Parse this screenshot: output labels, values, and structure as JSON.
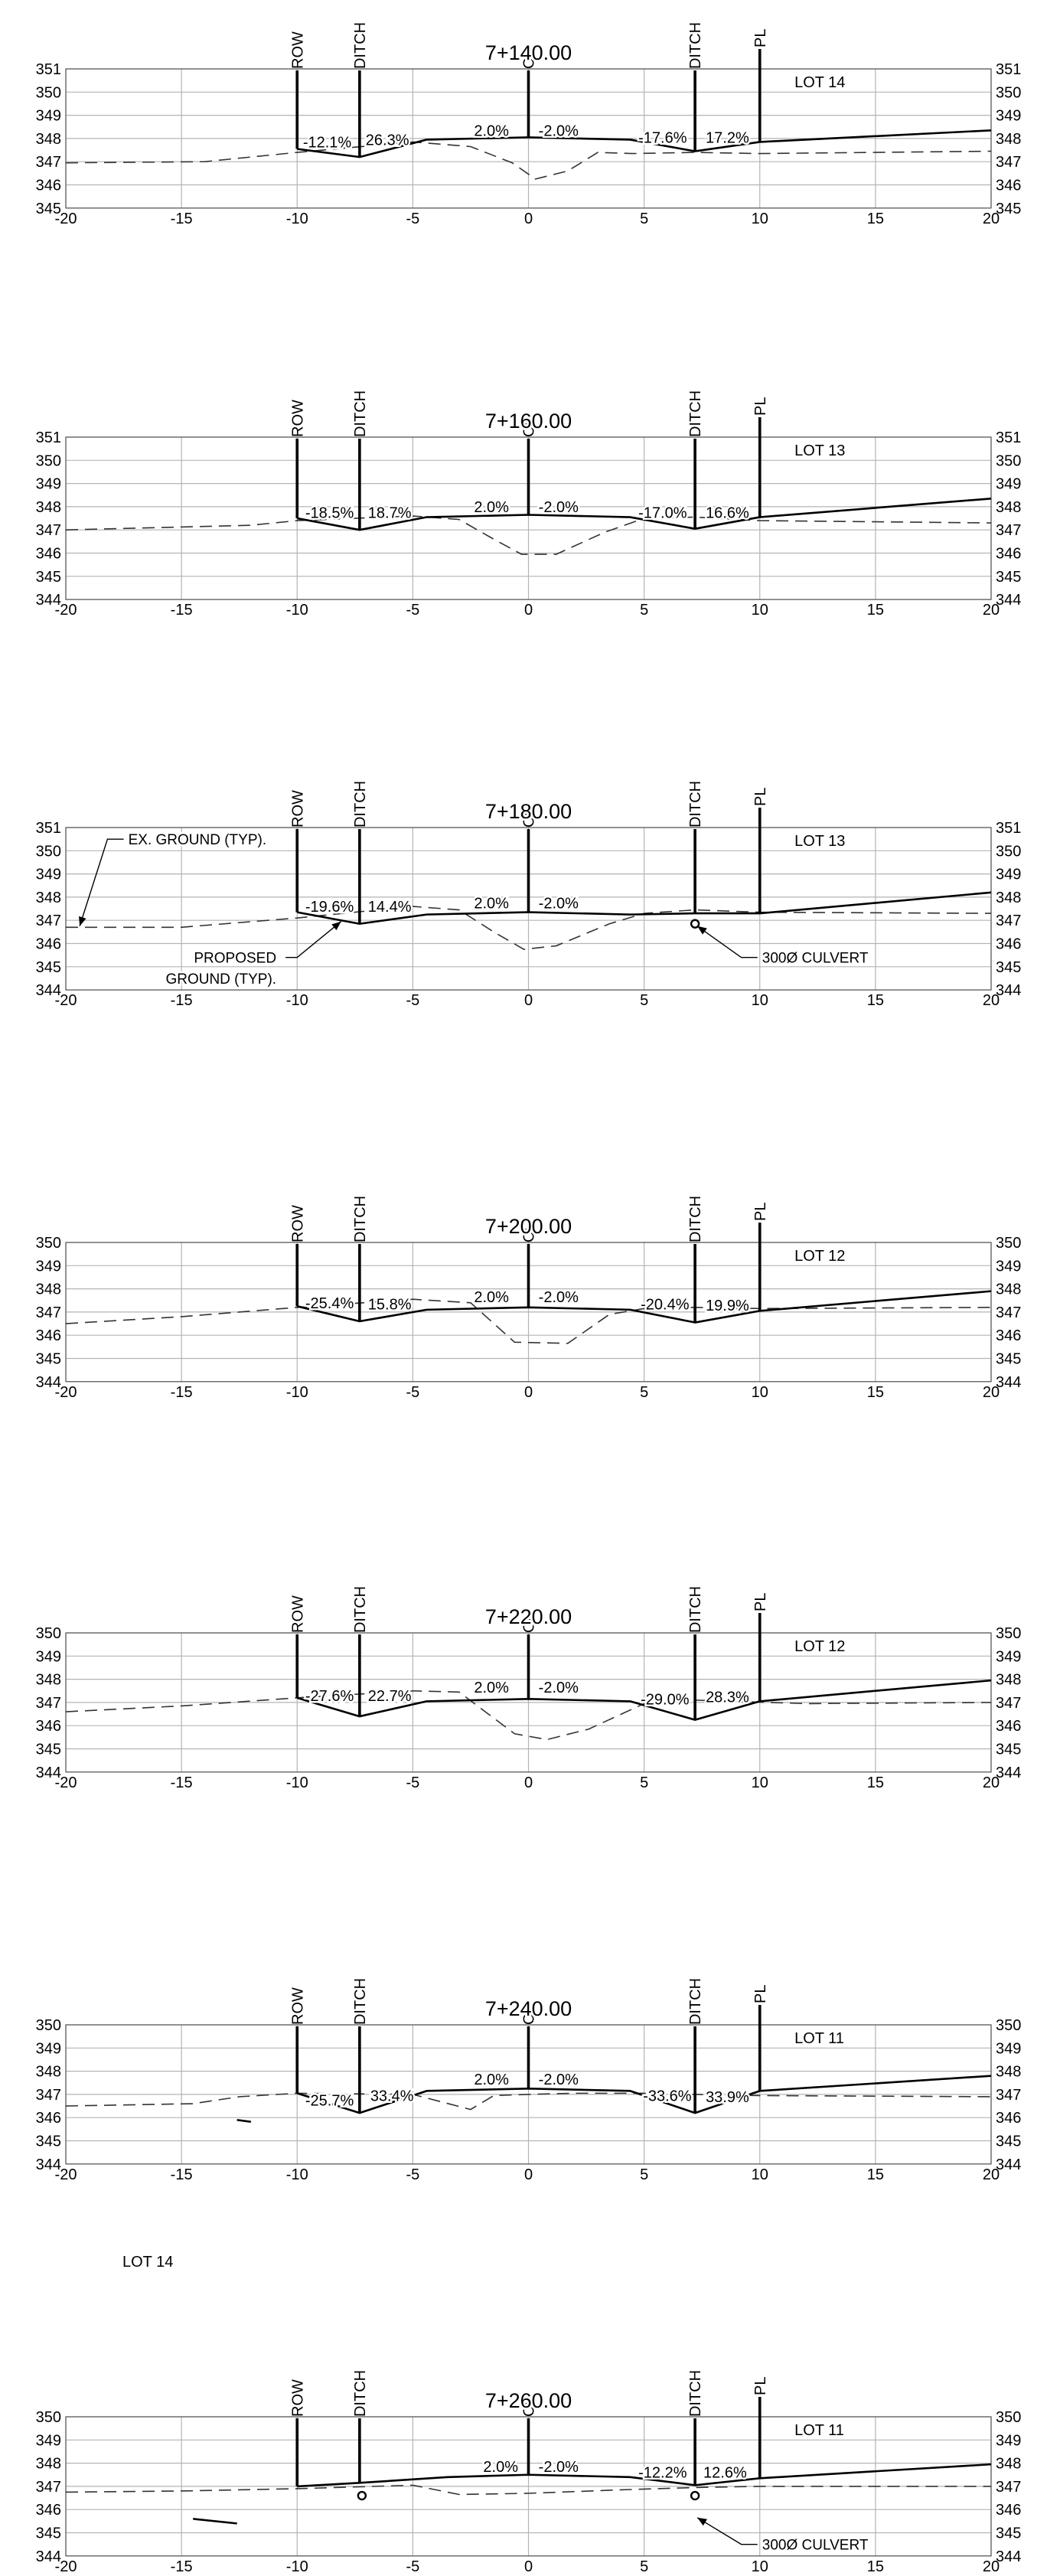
{
  "drawing": {
    "x_ticks": [
      "-20",
      "-15",
      "-10",
      "-5",
      "0",
      "5",
      "10",
      "15",
      "20"
    ],
    "marker_labels": [
      "ROW",
      "DITCH",
      "CL",
      "DITCH",
      "PL"
    ],
    "stray_note": "LOT 14"
  },
  "chart_data": [
    {
      "type": "line",
      "title": "7+140.00",
      "lot_label": "LOT 14",
      "xlim": [
        -20,
        20
      ],
      "ylim": [
        345,
        351
      ],
      "y_ticks": [
        "345",
        "346",
        "347",
        "348",
        "349",
        "350",
        "351"
      ],
      "markers_x": [
        -10,
        -7.3,
        0,
        7.2,
        10
      ],
      "proposed": [
        [
          -10,
          347.55
        ],
        [
          -7.3,
          347.2
        ],
        [
          -4.4,
          347.95
        ],
        [
          0,
          348.05
        ],
        [
          4.4,
          347.95
        ],
        [
          7.2,
          347.45
        ],
        [
          10,
          347.85
        ],
        [
          20,
          348.35
        ]
      ],
      "existing": [
        [
          -20,
          346.95
        ],
        [
          -14,
          347.0
        ],
        [
          -10,
          347.4
        ],
        [
          -5,
          347.85
        ],
        [
          -2.5,
          347.65
        ],
        [
          -0.7,
          346.95
        ],
        [
          0.3,
          346.25
        ],
        [
          1.7,
          346.6
        ],
        [
          3.0,
          347.4
        ],
        [
          4.5,
          347.35
        ],
        [
          7.2,
          347.4
        ],
        [
          10,
          347.35
        ],
        [
          20,
          347.45
        ]
      ],
      "slopes": [
        {
          "text": "-12.1%",
          "x": -8.7,
          "y": 347.85
        },
        {
          "text": "26.3%",
          "x": -6.1,
          "y": 347.95
        },
        {
          "text": "2.0%",
          "x": -1.6,
          "y": 348.35
        },
        {
          "text": "-2.0%",
          "x": 1.3,
          "y": 348.35
        },
        {
          "text": "-17.6%",
          "x": 5.8,
          "y": 348.05
        },
        {
          "text": "17.2%",
          "x": 8.6,
          "y": 348.05
        }
      ],
      "culverts": [],
      "notes": []
    },
    {
      "type": "line",
      "title": "7+160.00",
      "lot_label": "LOT 13",
      "xlim": [
        -20,
        20
      ],
      "ylim": [
        344,
        351
      ],
      "y_ticks": [
        "344",
        "345",
        "346",
        "347",
        "348",
        "349",
        "350",
        "351"
      ],
      "markers_x": [
        -10,
        -7.3,
        0,
        7.2,
        10
      ],
      "proposed": [
        [
          -10,
          347.5
        ],
        [
          -7.3,
          347.0
        ],
        [
          -4.4,
          347.55
        ],
        [
          0,
          347.65
        ],
        [
          4.4,
          347.55
        ],
        [
          7.2,
          347.05
        ],
        [
          10,
          347.55
        ],
        [
          20,
          348.35
        ]
      ],
      "existing": [
        [
          -20,
          347.0
        ],
        [
          -12,
          347.2
        ],
        [
          -10,
          347.4
        ],
        [
          -5,
          347.6
        ],
        [
          -3,
          347.45
        ],
        [
          -1.5,
          346.6
        ],
        [
          -0.3,
          345.95
        ],
        [
          1.2,
          345.95
        ],
        [
          3.3,
          346.9
        ],
        [
          5.0,
          347.5
        ],
        [
          7.2,
          347.55
        ],
        [
          10,
          347.4
        ],
        [
          20,
          347.3
        ]
      ],
      "slopes": [
        {
          "text": "-18.5%",
          "x": -8.6,
          "y": 347.75
        },
        {
          "text": "18.7%",
          "x": -6.0,
          "y": 347.75
        },
        {
          "text": "2.0%",
          "x": -1.6,
          "y": 348.0
        },
        {
          "text": "-2.0%",
          "x": 1.3,
          "y": 348.0
        },
        {
          "text": "-17.0%",
          "x": 5.8,
          "y": 347.75
        },
        {
          "text": "16.6%",
          "x": 8.6,
          "y": 347.75
        }
      ],
      "culverts": [],
      "notes": []
    },
    {
      "type": "line",
      "title": "7+180.00",
      "lot_label": "LOT 13",
      "xlim": [
        -20,
        20
      ],
      "ylim": [
        344,
        351
      ],
      "y_ticks": [
        "344",
        "345",
        "346",
        "347",
        "348",
        "349",
        "350",
        "351"
      ],
      "markers_x": [
        -10,
        -7.3,
        0,
        7.2,
        10
      ],
      "proposed": [
        [
          -10,
          347.35
        ],
        [
          -7.3,
          346.85
        ],
        [
          -4.4,
          347.25
        ],
        [
          0,
          347.35
        ],
        [
          4.4,
          347.25
        ],
        [
          7.2,
          347.3
        ],
        [
          10,
          347.3
        ],
        [
          20,
          348.2
        ]
      ],
      "existing": [
        [
          -20,
          346.7
        ],
        [
          -15,
          346.7
        ],
        [
          -10,
          347.1
        ],
        [
          -5,
          347.6
        ],
        [
          -3,
          347.45
        ],
        [
          -1.5,
          346.5
        ],
        [
          -0.2,
          345.75
        ],
        [
          1.2,
          345.9
        ],
        [
          3.5,
          346.85
        ],
        [
          5.0,
          347.3
        ],
        [
          7.2,
          347.45
        ],
        [
          10,
          347.35
        ],
        [
          20,
          347.3
        ]
      ],
      "slopes": [
        {
          "text": "-19.6%",
          "x": -8.6,
          "y": 347.6
        },
        {
          "text": "14.4%",
          "x": -6.0,
          "y": 347.6
        },
        {
          "text": "2.0%",
          "x": -1.6,
          "y": 347.75
        },
        {
          "text": "-2.0%",
          "x": 1.3,
          "y": 347.75
        }
      ],
      "culverts": [
        {
          "x": 7.2,
          "y": 346.85
        }
      ],
      "notes": [
        {
          "text": "EX. GROUND (TYP).",
          "lines": null,
          "x": -17.3,
          "y": 350.5,
          "anchor": "start",
          "leader": [
            [
              -17.5,
              350.5
            ],
            [
              -18.2,
              350.5
            ],
            [
              -19.4,
              346.75
            ]
          ]
        },
        {
          "text": "PROPOSED",
          "x": -10.9,
          "y": 345.4,
          "anchor": "end",
          "leader": [
            [
              -10.5,
              345.4
            ],
            [
              -10.0,
              345.4
            ],
            [
              -8.1,
              346.95
            ]
          ]
        },
        {
          "text": "GROUND (TYP).",
          "x": -10.9,
          "y": 344.5,
          "anchor": "end",
          "leader": null
        },
        {
          "text": "300Ø CULVERT",
          "x": 10.1,
          "y": 345.4,
          "anchor": "start",
          "leader": [
            [
              9.9,
              345.4
            ],
            [
              9.2,
              345.4
            ],
            [
              7.3,
              346.75
            ]
          ]
        }
      ]
    },
    {
      "type": "line",
      "title": "7+200.00",
      "lot_label": "LOT 12",
      "xlim": [
        -20,
        20
      ],
      "ylim": [
        344,
        350
      ],
      "y_ticks": [
        "344",
        "345",
        "346",
        "347",
        "348",
        "349",
        "350"
      ],
      "markers_x": [
        -10,
        -7.3,
        0,
        7.2,
        10
      ],
      "proposed": [
        [
          -10,
          347.25
        ],
        [
          -7.3,
          346.6
        ],
        [
          -4.4,
          347.1
        ],
        [
          0,
          347.2
        ],
        [
          4.4,
          347.1
        ],
        [
          7.2,
          346.55
        ],
        [
          10,
          347.05
        ],
        [
          20,
          347.9
        ]
      ],
      "existing": [
        [
          -20,
          346.5
        ],
        [
          -15,
          346.8
        ],
        [
          -10,
          347.2
        ],
        [
          -5,
          347.55
        ],
        [
          -2.5,
          347.4
        ],
        [
          -0.6,
          345.7
        ],
        [
          1.7,
          345.65
        ],
        [
          3.5,
          346.9
        ],
        [
          5.0,
          347.15
        ],
        [
          7.2,
          347.2
        ],
        [
          10,
          347.15
        ],
        [
          20,
          347.2
        ]
      ],
      "slopes": [
        {
          "text": "-25.4%",
          "x": -8.6,
          "y": 347.4
        },
        {
          "text": "15.8%",
          "x": -6.0,
          "y": 347.35
        },
        {
          "text": "2.0%",
          "x": -1.6,
          "y": 347.65
        },
        {
          "text": "-2.0%",
          "x": 1.3,
          "y": 347.65
        },
        {
          "text": "-20.4%",
          "x": 5.9,
          "y": 347.35
        },
        {
          "text": "19.9%",
          "x": 8.6,
          "y": 347.3
        }
      ],
      "culverts": [],
      "notes": []
    },
    {
      "type": "line",
      "title": "7+220.00",
      "lot_label": "LOT 12",
      "xlim": [
        -20,
        20
      ],
      "ylim": [
        344,
        350
      ],
      "y_ticks": [
        "344",
        "345",
        "346",
        "347",
        "348",
        "349",
        "350"
      ],
      "markers_x": [
        -10,
        -7.3,
        0,
        7.2,
        10
      ],
      "proposed": [
        [
          -10,
          347.2
        ],
        [
          -7.3,
          346.4
        ],
        [
          -4.4,
          347.05
        ],
        [
          0,
          347.15
        ],
        [
          4.4,
          347.05
        ],
        [
          7.2,
          346.25
        ],
        [
          10,
          347.05
        ],
        [
          20,
          347.95
        ]
      ],
      "existing": [
        [
          -20,
          346.6
        ],
        [
          -15,
          346.85
        ],
        [
          -10,
          347.2
        ],
        [
          -5,
          347.5
        ],
        [
          -3,
          347.45
        ],
        [
          -0.6,
          345.65
        ],
        [
          0.8,
          345.4
        ],
        [
          2.6,
          345.85
        ],
        [
          5,
          346.95
        ],
        [
          7.2,
          347.1
        ],
        [
          12,
          346.95
        ],
        [
          20,
          347.0
        ]
      ],
      "slopes": [
        {
          "text": "-27.6%",
          "x": -8.6,
          "y": 347.3
        },
        {
          "text": "22.7%",
          "x": -6.0,
          "y": 347.3
        },
        {
          "text": "2.0%",
          "x": -1.6,
          "y": 347.65
        },
        {
          "text": "-2.0%",
          "x": 1.3,
          "y": 347.65
        },
        {
          "text": "-29.0%",
          "x": 5.9,
          "y": 347.15
        },
        {
          "text": "28.3%",
          "x": 8.6,
          "y": 347.25
        }
      ],
      "culverts": [],
      "notes": []
    },
    {
      "type": "line",
      "title": "7+240.00",
      "lot_label": "LOT 11",
      "xlim": [
        -20,
        20
      ],
      "ylim": [
        344,
        350
      ],
      "y_ticks": [
        "344",
        "345",
        "346",
        "347",
        "348",
        "349",
        "350"
      ],
      "markers_x": [
        -10,
        -7.3,
        0,
        7.2,
        10
      ],
      "proposed": [
        [
          -10,
          347.05
        ],
        [
          -7.3,
          346.2
        ],
        [
          -4.4,
          347.15
        ],
        [
          0,
          347.25
        ],
        [
          4.4,
          347.15
        ],
        [
          7.2,
          346.2
        ],
        [
          10,
          347.15
        ],
        [
          20,
          347.8
        ]
      ],
      "existing": [
        [
          -20,
          346.5
        ],
        [
          -14.5,
          346.6
        ],
        [
          -12.5,
          346.9
        ],
        [
          -10,
          347.05
        ],
        [
          -5,
          347.0
        ],
        [
          -2.5,
          346.35
        ],
        [
          -1.5,
          346.95
        ],
        [
          0,
          347.0
        ],
        [
          2.0,
          347.05
        ],
        [
          5,
          347.05
        ],
        [
          7.2,
          347.0
        ],
        [
          10,
          346.95
        ],
        [
          20,
          346.9
        ]
      ],
      "stray": [
        [
          -12.6,
          345.9
        ],
        [
          -12.0,
          345.82
        ]
      ],
      "slopes": [
        {
          "text": "-25.7%",
          "x": -8.6,
          "y": 346.75
        },
        {
          "text": "33.4%",
          "x": -5.9,
          "y": 346.95
        },
        {
          "text": "2.0%",
          "x": -1.6,
          "y": 347.65
        },
        {
          "text": "-2.0%",
          "x": 1.3,
          "y": 347.65
        },
        {
          "text": "-33.6%",
          "x": 6.0,
          "y": 346.95
        },
        {
          "text": "33.9%",
          "x": 8.6,
          "y": 346.9
        }
      ],
      "culverts": [],
      "notes": []
    },
    {
      "type": "line",
      "title": "7+260.00",
      "lot_label": "LOT 11",
      "xlim": [
        -20,
        20
      ],
      "ylim": [
        344,
        350
      ],
      "y_ticks": [
        "344",
        "345",
        "346",
        "347",
        "348",
        "349",
        "350"
      ],
      "markers_x": [
        -10,
        -7.3,
        0,
        7.2,
        10
      ],
      "proposed": [
        [
          -10,
          347.0
        ],
        [
          -7.3,
          347.15
        ],
        [
          -3.5,
          347.4
        ],
        [
          0,
          347.5
        ],
        [
          4.4,
          347.4
        ],
        [
          7.2,
          347.05
        ],
        [
          10,
          347.35
        ],
        [
          20,
          347.95
        ]
      ],
      "existing": [
        [
          -20,
          346.75
        ],
        [
          -15,
          346.8
        ],
        [
          -10,
          346.9
        ],
        [
          -5,
          347.05
        ],
        [
          -3,
          346.65
        ],
        [
          0,
          346.7
        ],
        [
          4,
          346.85
        ],
        [
          7.2,
          346.95
        ],
        [
          10,
          347.0
        ],
        [
          20,
          347.0
        ]
      ],
      "stray": [
        [
          -14.5,
          345.6
        ],
        [
          -12.6,
          345.4
        ]
      ],
      "slopes": [
        {
          "text": "2.0%",
          "x": -1.2,
          "y": 347.85
        },
        {
          "text": "-2.0%",
          "x": 1.3,
          "y": 347.85
        },
        {
          "text": "-12.2%",
          "x": 5.8,
          "y": 347.6
        },
        {
          "text": "12.6%",
          "x": 8.5,
          "y": 347.6
        }
      ],
      "culverts": [
        {
          "x": -7.2,
          "y": 346.6
        },
        {
          "x": 7.2,
          "y": 346.6
        }
      ],
      "notes": [
        {
          "text": "300Ø CULVERT",
          "x": 10.1,
          "y": 344.5,
          "anchor": "start",
          "leader": [
            [
              9.9,
              344.5
            ],
            [
              9.2,
              344.5
            ],
            [
              7.3,
              345.65
            ]
          ]
        }
      ]
    }
  ]
}
